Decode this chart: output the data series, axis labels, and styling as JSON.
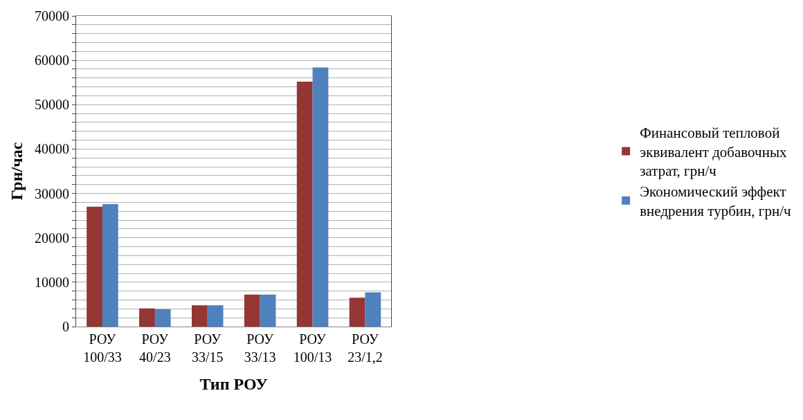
{
  "chart_data": {
    "type": "bar",
    "xlabel": "Тип РОУ",
    "ylabel": "Грн/час",
    "categories": [
      "РОУ 100/33",
      "РОУ 40/23",
      "РОУ 33/15",
      "РОУ 33/13",
      "РОУ 100/13",
      "РОУ 23/1,2"
    ],
    "series": [
      {
        "name": "Финансовый тепловой эквивалент добавочных затрат, грн/ч",
        "color": "#943634",
        "values": [
          27000,
          4100,
          4800,
          7200,
          55200,
          6500
        ]
      },
      {
        "name": "Экономический эффект внедрения турбин, грн/ч",
        "color": "#4f81bd",
        "values": [
          27600,
          3900,
          4800,
          7200,
          58400,
          7700
        ]
      }
    ],
    "ylim": [
      0,
      70000
    ],
    "yticks": [
      0,
      {
        "value": 2000,
        "label": null
      },
      {
        "value": 4000,
        "label": null
      },
      {
        "value": 6000,
        "label": null
      },
      {
        "value": 8000,
        "label": null
      },
      10000,
      {
        "value": 12000,
        "label": null
      },
      {
        "value": 14000,
        "label": null
      },
      {
        "value": 16000,
        "label": null
      },
      {
        "value": 18000,
        "label": null
      },
      20000,
      {
        "value": 22000,
        "label": null
      },
      {
        "value": 24000,
        "label": null
      },
      {
        "value": 26000,
        "label": null
      },
      {
        "value": 28000,
        "label": null
      },
      30000,
      {
        "value": 32000,
        "label": null
      },
      {
        "value": 34000,
        "label": null
      },
      {
        "value": 36000,
        "label": null
      },
      {
        "value": 38000,
        "label": null
      },
      40000,
      {
        "value": 42000,
        "label": null
      },
      {
        "value": 44000,
        "label": null
      },
      {
        "value": 46000,
        "label": null
      },
      {
        "value": 48000,
        "label": null
      },
      50000,
      {
        "value": 52000,
        "label": null
      },
      {
        "value": 54000,
        "label": null
      },
      {
        "value": 56000,
        "label": null
      },
      {
        "value": 58000,
        "label": null
      },
      60000,
      {
        "value": 62000,
        "label": null
      },
      {
        "value": 64000,
        "label": null
      },
      {
        "value": 66000,
        "label": null
      },
      {
        "value": 68000,
        "label": null
      },
      70000
    ],
    "grid": true,
    "legend": "right"
  }
}
